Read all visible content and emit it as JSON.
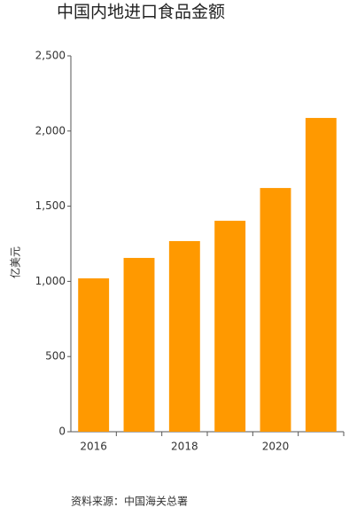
{
  "chart_data": {
    "type": "bar",
    "title": "中国内地进口食品金额",
    "y_label": "亿美元",
    "source": "资料来源：中国海关总署",
    "categories": [
      "2016",
      null,
      "2018",
      null,
      "2020",
      null
    ],
    "values": [
      1020,
      1156,
      1268,
      1403,
      1621,
      2087
    ],
    "color": "#ff9900",
    "ylim": [
      0,
      2500
    ],
    "yticks": [
      0,
      500,
      {
        "value": 1000,
        "label": "1,000"
      },
      {
        "value": 1500,
        "label": "1,500"
      },
      {
        "value": 2000,
        "label": "2,000"
      },
      {
        "value": 2500,
        "label": "2,500"
      }
    ],
    "grid": false
  }
}
